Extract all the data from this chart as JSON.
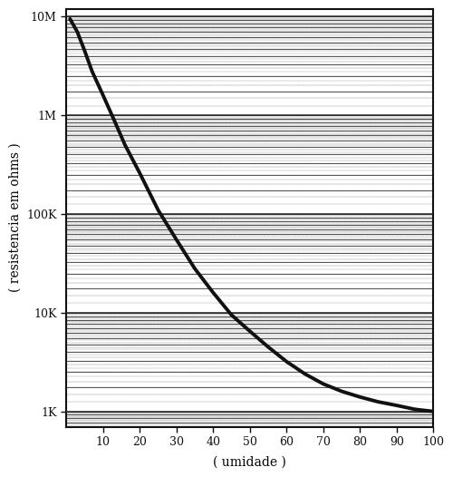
{
  "title": "",
  "xlabel": "( umidade )",
  "ylabel": "( resistencia em ohms )",
  "xlim": [
    0,
    100
  ],
  "ylim_log": [
    700,
    12000000.0
  ],
  "yticks": [
    1000,
    10000,
    100000,
    1000000,
    10000000
  ],
  "ytick_labels": [
    "1K",
    "10K",
    "100K",
    "1M",
    "10M"
  ],
  "xticks": [
    10,
    20,
    30,
    40,
    50,
    60,
    70,
    80,
    90,
    100
  ],
  "curve_x": [
    1,
    3,
    5,
    7,
    10,
    13,
    16,
    20,
    25,
    30,
    35,
    40,
    45,
    50,
    55,
    60,
    65,
    70,
    75,
    80,
    85,
    90,
    95,
    100
  ],
  "curve_y": [
    9500000,
    7000000,
    4500000,
    2800000,
    1600000,
    900000,
    500000,
    260000,
    110000,
    55000,
    28000,
    16000,
    9500,
    6500,
    4500,
    3200,
    2400,
    1900,
    1600,
    1400,
    1250,
    1150,
    1050,
    1000
  ],
  "line_color": "#111111",
  "line_width": 2.8,
  "bg_color": "#ffffff",
  "hline_color": "#222222",
  "hline_color2": "#555555",
  "axis_color": "#111111",
  "label_fontsize": 10,
  "tick_fontsize": 9,
  "lines_per_decade": 12,
  "border_linewidth": 1.5
}
